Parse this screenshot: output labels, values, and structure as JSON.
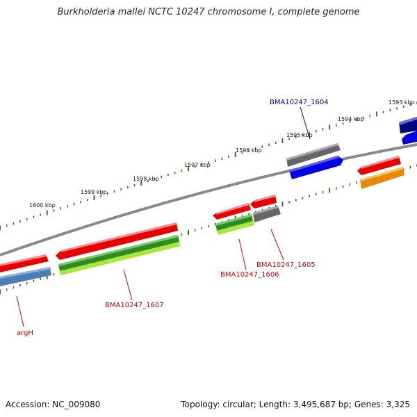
{
  "title": "Burkholderia mallei NCTC 10247 chromosome I, complete genome",
  "footer": {
    "accession": "Accession: NC_009080",
    "summary": "Topology: circular; Length: 3,495,687 bp; Genes: 3,325"
  },
  "colors": {
    "backbone": "#8a8a8a",
    "tick": "#2e7d18",
    "label_red": "#d40000",
    "label_blue": "#0000b0"
  },
  "ticks": [
    {
      "label": "1600 kbp"
    },
    {
      "label": "1599 kbp"
    },
    {
      "label": "1598 kbp"
    },
    {
      "label": "1597 kbp"
    },
    {
      "label": "1596 kbp"
    },
    {
      "label": "1595 kbp"
    },
    {
      "label": "1594 kbp"
    },
    {
      "label": "1593 kbp"
    }
  ],
  "gene_labels": [
    {
      "text": "argH",
      "color": "#d40000"
    },
    {
      "text": "BMA10247_1607",
      "color": "#d40000"
    },
    {
      "text": "BMA10247_1606",
      "color": "#d40000"
    },
    {
      "text": "BMA10247_1605",
      "color": "#d40000"
    },
    {
      "text": "BMA10247_1604",
      "color": "#0000b0"
    }
  ],
  "features": [
    {
      "name": "argh-cds",
      "color": "#e80000"
    },
    {
      "name": "argh-gene",
      "color": "#4a7fb5"
    },
    {
      "name": "bma1607-cds",
      "color": "#e80000"
    },
    {
      "name": "bma1607-gene-green",
      "color": "#2e8b22"
    },
    {
      "name": "bma1607-gene-lime",
      "color": "#a8e63c"
    },
    {
      "name": "bma1606-cds",
      "color": "#e80000"
    },
    {
      "name": "bma1606-gene-green",
      "color": "#2e8b22"
    },
    {
      "name": "bma1606-gene-lime",
      "color": "#a8e63c"
    },
    {
      "name": "bma1605-cds",
      "color": "#e80000"
    },
    {
      "name": "bma1605-gene",
      "color": "#666666"
    },
    {
      "name": "bma1604-gene",
      "color": "#666666"
    },
    {
      "name": "bma1604-cds",
      "color": "#0000e0"
    },
    {
      "name": "bma1603-cds",
      "color": "#e80000"
    },
    {
      "name": "bma1603-gene",
      "color": "#e88a00"
    },
    {
      "name": "bma1602-gene",
      "color": "#000080"
    },
    {
      "name": "bma1602-cds",
      "color": "#0000e0"
    }
  ]
}
